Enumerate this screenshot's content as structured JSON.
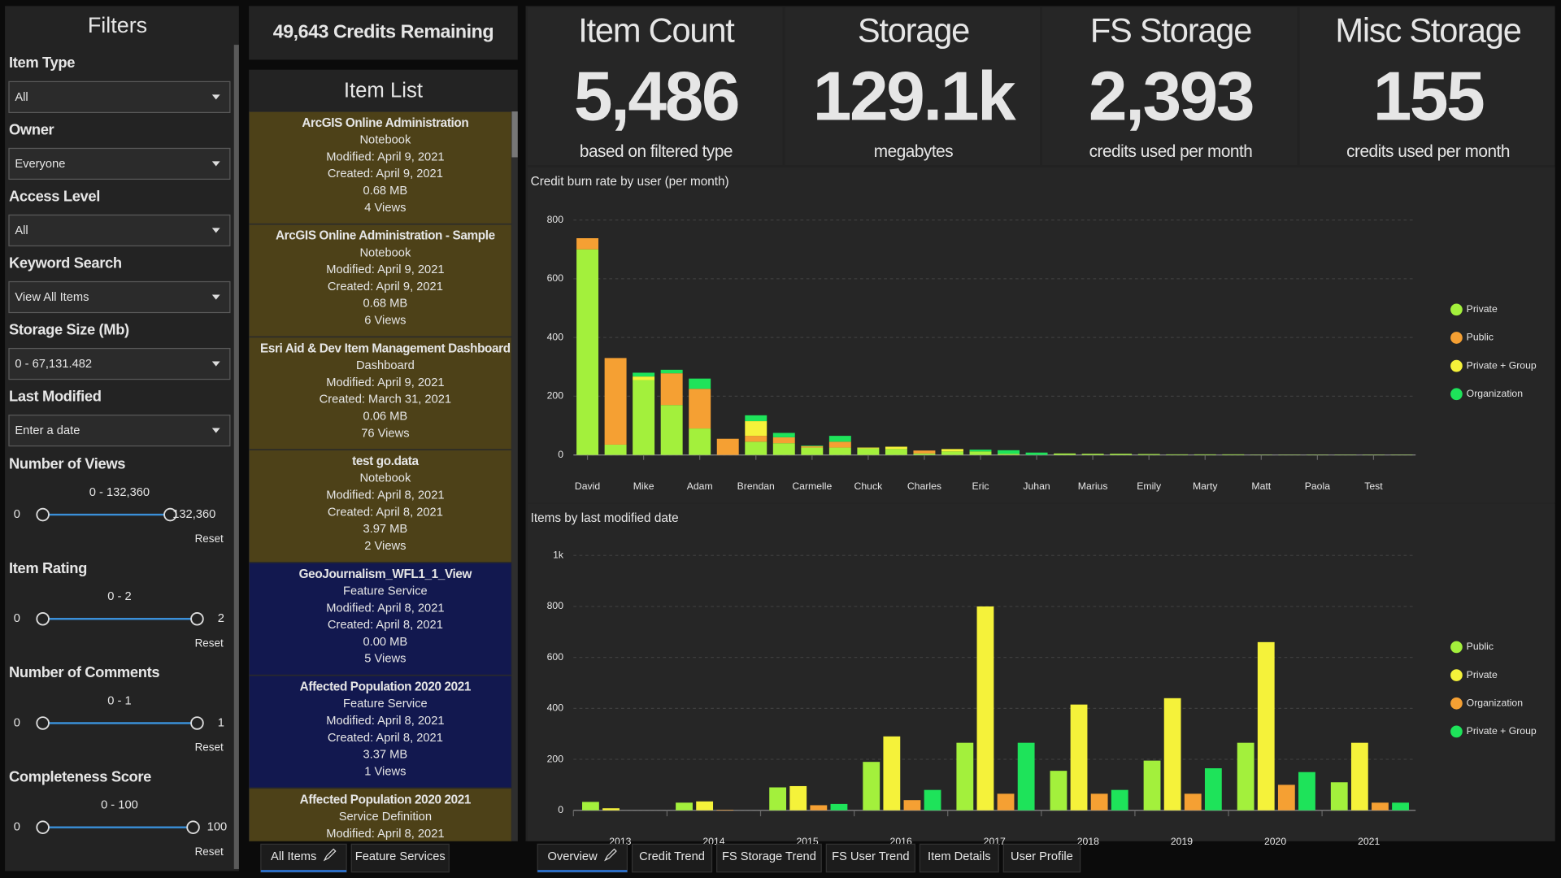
{
  "filters": {
    "title": "Filters",
    "dropdowns": [
      {
        "label": "Item Type",
        "value": "All"
      },
      {
        "label": "Owner",
        "value": "Everyone"
      },
      {
        "label": "Access Level",
        "value": "All"
      },
      {
        "label": "Keyword Search",
        "value": "View All Items"
      },
      {
        "label": "Storage Size (Mb)",
        "value": "0 - 67,131.482"
      },
      {
        "label": "Last Modified",
        "value": "Enter a date"
      }
    ],
    "sliders": [
      {
        "label": "Number of Views",
        "range": "0 - 132,360",
        "min": "0",
        "max": "132,360",
        "reset": "Reset"
      },
      {
        "label": "Item Rating",
        "range": "0 - 2",
        "min": "0",
        "max": "2",
        "reset": "Reset"
      },
      {
        "label": "Number of Comments",
        "range": "0 - 1",
        "min": "0",
        "max": "1",
        "reset": "Reset"
      },
      {
        "label": "Completeness Score",
        "range": "0 - 100",
        "min": "0",
        "max": "100",
        "reset": "Reset"
      }
    ]
  },
  "credits": "49,643 Credits Remaining",
  "item_list": {
    "title": "Item List",
    "items": [
      {
        "title": "ArcGIS Online Administration",
        "color": "#4d4118",
        "lines": [
          "Notebook",
          "Modified: April 9, 2021",
          "Created: April 9, 2021",
          "0.68 MB",
          "4 Views"
        ]
      },
      {
        "title": "ArcGIS Online Administration - Sample",
        "color": "#4d4118",
        "lines": [
          "Notebook",
          "Modified: April 9, 2021",
          "Created: April 9, 2021",
          "0.68 MB",
          "6 Views"
        ]
      },
      {
        "title": "Esri Aid & Dev Item Management Dashboard",
        "color": "#4d4118",
        "lines": [
          "Dashboard",
          "Modified: April 9, 2021",
          "Created: March 31, 2021",
          "0.06 MB",
          "76 Views"
        ]
      },
      {
        "title": "test go.data",
        "color": "#4d4118",
        "lines": [
          "Notebook",
          "Modified: April 8, 2021",
          "Created: April 8, 2021",
          "3.97 MB",
          "2 Views"
        ]
      },
      {
        "title": "GeoJournalism_WFL1_1_View",
        "color": "#12184f",
        "lines": [
          "Feature Service",
          "Modified: April 8, 2021",
          "Created: April 8, 2021",
          "0.00 MB",
          "5 Views"
        ]
      },
      {
        "title": "Affected Population 2020 2021",
        "color": "#12184f",
        "lines": [
          "Feature Service",
          "Modified: April 8, 2021",
          "Created: April 8, 2021",
          "3.37 MB",
          "1 Views"
        ]
      },
      {
        "title": "Affected Population 2020 2021",
        "color": "#4d4118",
        "lines": [
          "Service Definition",
          "Modified: April 8, 2021"
        ]
      }
    ],
    "tabs": [
      "All Items",
      "Feature Services"
    ]
  },
  "kpis": [
    {
      "title": "Item Count",
      "value": "5,486",
      "caption": "based on filtered type"
    },
    {
      "title": "Storage",
      "value": "129.1k",
      "caption": "megabytes"
    },
    {
      "title": "FS Storage",
      "value": "2,393",
      "caption": "credits used per month"
    },
    {
      "title": "Misc Storage",
      "value": "155",
      "caption": "credits used per month"
    }
  ],
  "chart_data": [
    {
      "type": "bar",
      "stacked": true,
      "title": "Credit burn rate by user (per month)",
      "categories": [
        "David",
        null,
        "Mike",
        null,
        "Adam",
        null,
        "Brendan",
        null,
        "Carmelle",
        null,
        "Chuck",
        null,
        "Charles",
        null,
        "Eric",
        null,
        "Juhan",
        null,
        "Marius",
        null,
        "Emily",
        null,
        "Marty",
        null,
        "Matt",
        null,
        "Paola",
        null,
        "Test",
        null
      ],
      "series": [
        {
          "name": "Private",
          "color": "#a3f03c",
          "values": [
            700,
            35,
            255,
            170,
            90,
            0,
            45,
            40,
            25,
            25,
            22,
            20,
            5,
            12,
            12,
            4,
            0,
            5,
            4,
            4,
            3,
            2,
            2,
            2,
            1,
            1,
            1,
            1,
            1,
            1
          ]
        },
        {
          "name": "Public",
          "color": "#f5a033",
          "values": [
            38,
            295,
            0,
            108,
            135,
            55,
            20,
            20,
            5,
            20,
            0,
            0,
            10,
            0,
            0,
            0,
            0,
            0,
            0,
            0,
            0,
            0,
            0,
            0,
            0,
            0,
            0,
            0,
            0,
            0
          ]
        },
        {
          "name": "Private + Group",
          "color": "#f5f23a",
          "values": [
            0,
            0,
            12,
            0,
            0,
            0,
            50,
            0,
            0,
            0,
            3,
            8,
            0,
            8,
            0,
            0,
            0,
            0,
            0,
            0,
            0,
            0,
            0,
            0,
            0,
            0,
            0,
            0,
            0,
            0
          ]
        },
        {
          "name": "Organization",
          "color": "#1ee35a",
          "values": [
            0,
            0,
            13,
            12,
            35,
            0,
            20,
            15,
            2,
            20,
            0,
            0,
            0,
            0,
            6,
            12,
            8,
            0,
            0,
            0,
            0,
            0,
            0,
            0,
            0,
            0,
            0,
            0,
            0,
            0
          ]
        }
      ],
      "ylim": [
        0,
        800
      ],
      "yticks": [
        0,
        200,
        400,
        600,
        800
      ],
      "grid": true,
      "legend": "right"
    },
    {
      "type": "bar",
      "stacked": false,
      "title": "Items by last modified date",
      "categories": [
        "2013",
        "2014",
        "2015",
        "2016",
        "2017",
        "2018",
        "2019",
        "2020",
        "2021"
      ],
      "series": [
        {
          "name": "Public",
          "color": "#a3f03c",
          "values": [
            33,
            30,
            90,
            190,
            265,
            155,
            195,
            265,
            110
          ]
        },
        {
          "name": "Private",
          "color": "#f5f23a",
          "values": [
            8,
            35,
            95,
            290,
            800,
            415,
            440,
            660,
            265
          ]
        },
        {
          "name": "Organization",
          "color": "#f5a033",
          "values": [
            0,
            2,
            20,
            40,
            65,
            65,
            65,
            100,
            30
          ]
        },
        {
          "name": "Private + Group",
          "color": "#1ee35a",
          "values": [
            0,
            0,
            25,
            80,
            265,
            80,
            165,
            150,
            30
          ]
        }
      ],
      "ylim": [
        0,
        1000
      ],
      "yticks": [
        0,
        200,
        400,
        600,
        800,
        {
          "value": 1000,
          "label": "1k"
        }
      ],
      "grid": true,
      "legend": "right"
    }
  ],
  "tabs": [
    "Overview",
    "Credit Trend",
    "FS Storage Trend",
    "FS User Trend",
    "Item Details",
    "User Profile"
  ]
}
